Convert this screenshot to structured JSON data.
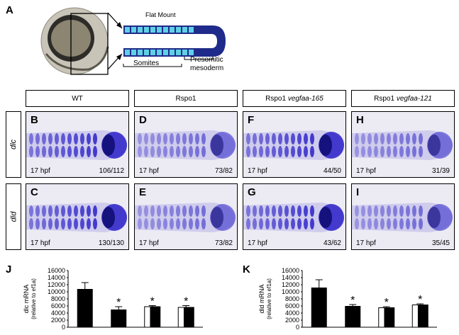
{
  "panel_a": {
    "letter": "A",
    "flat_mount": "Flat Mount",
    "somites": "Somites",
    "presomitic_line1": "Presomitic",
    "presomitic_line2": "mesoderm"
  },
  "columns": [
    "WT",
    "Rspo1",
    "Rspo1 ",
    "Rspo1 "
  ],
  "columns_italic": [
    "",
    "",
    "vegfaa-165",
    "vegfaa-121"
  ],
  "rows": [
    "dlc",
    "dld"
  ],
  "panels": [
    {
      "letter": "B",
      "stage": "17 hpf",
      "ratio": "106/112"
    },
    {
      "letter": "D",
      "stage": "17 hpf",
      "ratio": "73/82"
    },
    {
      "letter": "F",
      "stage": "17 hpf",
      "ratio": "44/50"
    },
    {
      "letter": "H",
      "stage": "17 hpf",
      "ratio": "31/39"
    },
    {
      "letter": "C",
      "stage": "17 hpf",
      "ratio": "130/130"
    },
    {
      "letter": "E",
      "stage": "17 hpf",
      "ratio": "73/82"
    },
    {
      "letter": "G",
      "stage": "17 hpf",
      "ratio": "43/62"
    },
    {
      "letter": "I",
      "stage": "17 hpf",
      "ratio": "35/45"
    }
  ],
  "colors": {
    "stain": "#2a20c8",
    "bar_dark": "#000000",
    "bar_open": "#ffffff"
  },
  "chart_data": [
    {
      "letter": "J",
      "type": "bar",
      "ylabel_line1": "dlc mRNA",
      "ylabel_line2": "(relative to ef1a)",
      "ylim": [
        0,
        16000
      ],
      "yticks": [
        "0",
        "2000",
        "4000",
        "6000",
        "8000",
        "10000",
        "12000",
        "14000",
        "16000"
      ],
      "values": [
        10800,
        5000,
        5800,
        5600
      ],
      "errors": [
        1800,
        800,
        300,
        500
      ],
      "styles": [
        "solid",
        "solid",
        "open-left",
        "open-left"
      ],
      "significance": [
        "",
        "*",
        "*",
        "*"
      ]
    },
    {
      "letter": "K",
      "type": "bar",
      "ylabel_line1": "dld mRNA",
      "ylabel_line2": "(relative to ef1a)",
      "ylim": [
        0,
        16000
      ],
      "yticks": [
        "0",
        "2000",
        "4000",
        "6000",
        "8000",
        "10000",
        "12000",
        "14000",
        "16000"
      ],
      "values": [
        11200,
        6000,
        5500,
        6300
      ],
      "errors": [
        2200,
        400,
        300,
        300
      ],
      "styles": [
        "solid",
        "solid",
        "open-left",
        "open-left"
      ],
      "significance": [
        "",
        "*",
        "*",
        "*"
      ]
    }
  ]
}
